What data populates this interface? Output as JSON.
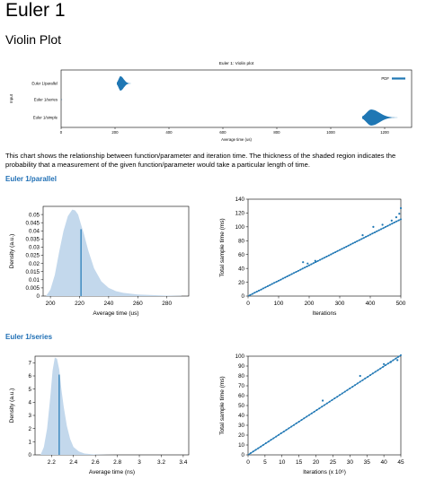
{
  "page": {
    "title": "Euler 1",
    "subtitle": "Violin Plot",
    "description": "This chart shows the relationship between function/parameter and iteration time. The thickness of the shaded region indicates the probability that a measurement of the given function/parameter would take a particular length of time."
  },
  "colors": {
    "accent": "#1f77b4",
    "fill": "#c3d8ec",
    "heading": "#1f6fb5"
  },
  "sections": [
    {
      "id": "parallel",
      "heading": "Euler 1/parallel"
    },
    {
      "id": "series",
      "heading": "Euler 1/series"
    }
  ],
  "chart_data": [
    {
      "type": "violin",
      "title": "Euler 1: Violin plot",
      "xlabel": "Average time (us)",
      "ylabel": "Input",
      "categories": [
        "Euler 1/parallel",
        "Euler 1/series",
        "Euler 1/simple"
      ],
      "centers": [
        220,
        2.3,
        1150
      ],
      "xlim": [
        0,
        1300
      ],
      "xticks": [
        "0",
        "200",
        "400",
        "600",
        "800",
        "1000",
        "1200"
      ],
      "legend": {
        "label": "PDF",
        "position": "top-right"
      }
    },
    {
      "type": "area",
      "section": "parallel",
      "xlabel": "Average time (us)",
      "ylabel": "Density (a.u.)",
      "xlim": [
        195,
        295
      ],
      "ylim": [
        0,
        0.055
      ],
      "xticks": [
        "200",
        "220",
        "240",
        "260",
        "280"
      ],
      "yticks": [
        "0",
        "0.005",
        "0.01",
        "0.015",
        "0.02",
        "0.025",
        "0.03",
        "0.035",
        "0.04",
        "0.045",
        "0.05"
      ],
      "x": [
        197,
        200,
        203,
        206,
        209,
        212,
        215,
        217,
        219,
        221,
        223,
        226,
        230,
        235,
        240,
        245,
        250,
        260,
        270,
        280,
        290
      ],
      "y": [
        0.0,
        0.004,
        0.013,
        0.027,
        0.04,
        0.049,
        0.053,
        0.0525,
        0.05,
        0.044,
        0.038,
        0.028,
        0.017,
        0.009,
        0.005,
        0.003,
        0.002,
        0.001,
        0.0006,
        0.0003,
        0.0001
      ],
      "mean": {
        "x": 221,
        "y": 0.041
      }
    },
    {
      "type": "scatter",
      "section": "parallel",
      "xlabel": "Iterations",
      "ylabel": "Total sample time (ms)",
      "xlim": [
        0,
        500
      ],
      "ylim": [
        0,
        140
      ],
      "xticks": [
        "0",
        "100",
        "200",
        "300",
        "400",
        "500"
      ],
      "yticks": [
        "0",
        "20",
        "40",
        "60",
        "80",
        "100",
        "120",
        "140"
      ],
      "fit": [
        [
          0,
          0
        ],
        [
          500,
          111
        ]
      ],
      "outliers": [
        [
          180,
          49
        ],
        [
          195,
          47
        ],
        [
          220,
          51
        ],
        [
          375,
          88
        ],
        [
          410,
          100
        ],
        [
          440,
          103
        ],
        [
          470,
          109
        ],
        [
          485,
          114
        ],
        [
          495,
          119
        ],
        [
          500,
          127
        ]
      ]
    },
    {
      "type": "area",
      "section": "series",
      "xlabel": "Average time (ns)",
      "ylabel": "Density (a.u.)",
      "xlim": [
        2.05,
        3.45
      ],
      "ylim": [
        0,
        7.5
      ],
      "xticks": [
        "2.2",
        "2.4",
        "2.6",
        "2.8",
        "3",
        "3.2",
        "3.4"
      ],
      "yticks": [
        "0",
        "1",
        "2",
        "3",
        "4",
        "5",
        "6",
        "7"
      ],
      "x": [
        2.1,
        2.13,
        2.16,
        2.19,
        2.21,
        2.23,
        2.25,
        2.27,
        2.29,
        2.31,
        2.34,
        2.37,
        2.4,
        2.45,
        2.5,
        2.6,
        2.7,
        2.8
      ],
      "y": [
        0.0,
        0.6,
        2.0,
        4.5,
        6.4,
        7.4,
        7.3,
        6.5,
        5.0,
        3.7,
        2.2,
        1.2,
        0.6,
        0.25,
        0.1,
        0.03,
        0.01,
        0.0
      ],
      "mean": {
        "x": 2.27,
        "y": 6.1
      }
    },
    {
      "type": "scatter",
      "section": "series",
      "xlabel": "Iterations (x 10⁶)",
      "ylabel": "Total sample time (ms)",
      "xlim": [
        0,
        45
      ],
      "ylim": [
        0,
        100
      ],
      "xticks": [
        "0",
        "5",
        "10",
        "15",
        "20",
        "25",
        "30",
        "35",
        "40",
        "45"
      ],
      "yticks": [
        "0",
        "10",
        "20",
        "30",
        "40",
        "50",
        "60",
        "70",
        "80",
        "90",
        "100"
      ],
      "fit": [
        [
          0,
          0
        ],
        [
          45,
          101
        ]
      ],
      "outliers": [
        [
          22,
          55
        ],
        [
          33,
          80
        ],
        [
          40,
          92
        ],
        [
          42,
          94
        ],
        [
          44,
          96
        ]
      ]
    }
  ]
}
